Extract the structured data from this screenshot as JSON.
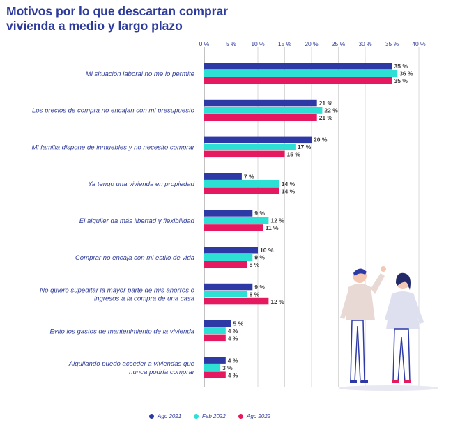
{
  "chart_data": {
    "type": "bar",
    "orientation": "horizontal",
    "title": "Motivos por lo que descartan comprar vivienda a medio y largo plazo",
    "xlim": [
      0,
      40
    ],
    "ticks": [
      "0 %",
      "5 %",
      "10 %",
      "15 %",
      "20 %",
      "25 %",
      "30 %",
      "35 %",
      "40 %"
    ],
    "tick_values": [
      0,
      5,
      10,
      15,
      20,
      25,
      30,
      35,
      40
    ],
    "grid": true,
    "legend_position": "bottom",
    "categories": [
      "Mi situación laboral no me lo permite",
      "Los precios de compra no encajan con mi presupuesto",
      "Mi familia dispone de inmuebles y no necesito comprar",
      "Ya  tengo una vivienda en propiedad",
      "El alquiler da más libertad y flexibilidad",
      "Comprar no encaja con mi estilo de vida",
      "No quiero supeditar la mayor parte de mis ahorros o ingresos a la compra de una casa",
      "Evito los gastos de mantenimiento de la vivienda",
      "Alquilando puedo acceder a viviendas que nunca podría comprar"
    ],
    "category_lines": [
      [
        "Mi situación laboral no me lo permite"
      ],
      [
        "Los precios de compra no encajan con mi presupuesto"
      ],
      [
        "Mi familia dispone de inmuebles y no necesito comprar"
      ],
      [
        "Ya  tengo una vivienda en propiedad"
      ],
      [
        "El alquiler da más libertad y flexibilidad"
      ],
      [
        "Comprar no encaja con mi estilo de vida"
      ],
      [
        "No quiero supeditar la mayor parte de mis ahorros o",
        "ingresos a la compra de una casa"
      ],
      [
        "Evito los gastos de mantenimiento de la vivienda"
      ],
      [
        "Alquilando puedo acceder a viviendas que",
        "nunca podría comprar"
      ]
    ],
    "series": [
      {
        "name": "Ago 2021",
        "color": "#2d3aa6",
        "values": [
          35,
          21,
          20,
          7,
          9,
          10,
          9,
          5,
          4
        ],
        "labels": [
          "35 %",
          "21 %",
          "20 %",
          "7 %",
          "9 %",
          "10 %",
          "9 %",
          "5 %",
          "4 %"
        ]
      },
      {
        "name": "Feb 2022",
        "color": "#2ee0d4",
        "values": [
          36,
          22,
          17,
          14,
          12,
          9,
          8,
          4,
          3
        ],
        "labels": [
          "36 %",
          "22 %",
          "17 %",
          "14 %",
          "12 %",
          "9 %",
          "8 %",
          "4 %",
          "3 %"
        ]
      },
      {
        "name": "Ago 2022",
        "color": "#e5195f",
        "values": [
          35,
          21,
          15,
          14,
          11,
          8,
          12,
          4,
          4
        ],
        "labels": [
          "35 %",
          "21 %",
          "15 %",
          "14 %",
          "11 %",
          "8 %",
          "12 %",
          "4 %",
          "4 %"
        ]
      }
    ]
  },
  "colors": {
    "title": "#2c3a9b",
    "axis_text": "#2f3c99",
    "grid": "#d9d9d9"
  },
  "illustration": "two-people-waving-icon"
}
